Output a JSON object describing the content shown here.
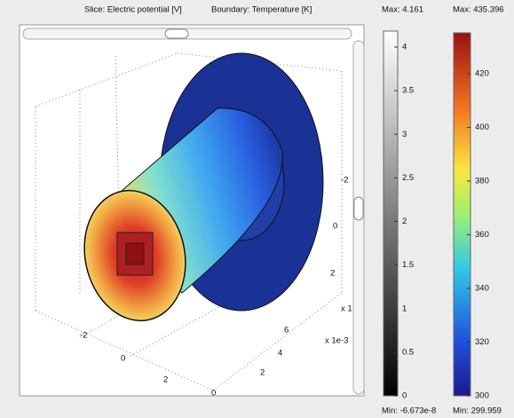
{
  "plot": {
    "slice_title": "Slice: Electric potential [V]",
    "boundary_title": "Boundary: Temperature [K]",
    "axis_labels": [
      "-2",
      "0",
      "2",
      "x 1",
      "-2",
      "0",
      "2",
      "6",
      "4",
      "2",
      "0",
      "x 1e-3"
    ]
  },
  "colorbars": [
    {
      "max_label": "Max: 4.161",
      "min_label": "Min: -6.673e-8",
      "ticks": [
        0,
        0.5,
        1,
        1.5,
        2,
        2.5,
        3,
        3.5,
        4
      ]
    },
    {
      "max_label": "Max: 435.396",
      "min_label": "Min: 299.959",
      "ticks": [
        300,
        320,
        340,
        360,
        380,
        400,
        420
      ]
    }
  ]
}
